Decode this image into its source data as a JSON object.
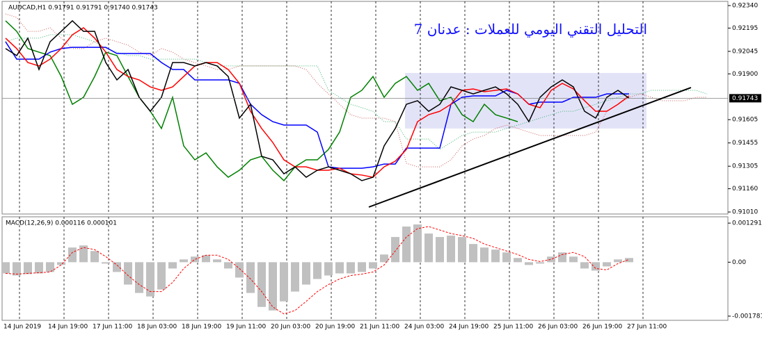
{
  "chart_data": [
    {
      "type": "line",
      "header": "AUDCAD,H1  0.91791 0.91791 0.91740 0.91743",
      "title": "التحليل التقني اليومي للعملات : عدنان 7",
      "categories": [
        "14 Jun 2019",
        null,
        null,
        null,
        "14 Jun 19:00",
        null,
        null,
        null,
        "17 Jun 11:00",
        null,
        null,
        null,
        "18 Jun 03:00",
        null,
        null,
        null,
        "18 Jun 19:00",
        null,
        null,
        null,
        "19 Jun 11:00",
        null,
        null,
        null,
        "20 Jun 03:00",
        null,
        null,
        null,
        "20 Jun 19:00",
        null,
        null,
        null,
        "21 Jun 11:00",
        null,
        null,
        null,
        "24 Jun 03:00",
        null,
        null,
        null,
        "24 Jun 19:00",
        null,
        null,
        null,
        "25 Jun 11:00",
        null,
        null,
        null,
        "26 Jun 03:00",
        null,
        null,
        null,
        "26 Jun 19:00",
        null,
        null,
        null,
        "27 Jun 11:00",
        null,
        null,
        null,
        null,
        null,
        null,
        null
      ],
      "series": [
        {
          "color": "#cd5c5c",
          "dash": "dotted",
          "values": [
            0.92286,
            0.92264,
            0.92174,
            0.92174,
            0.92197,
            0.9213,
            0.92063,
            0.92063,
            0.92107,
            0.9213,
            0.92107,
            0.92085,
            0.9204,
            0.92018,
            0.92063,
            0.9204,
            0.91995,
            0.91973,
            0.91951,
            0.91928,
            0.91928,
            0.91951,
            0.91951,
            0.91951,
            0.91951,
            0.91951,
            0.91951,
            0.91928,
            0.91839,
            0.91771,
            0.91704,
            0.91637,
            0.91615,
            0.91615,
            0.91615,
            0.91592,
            0.91324,
            0.91301,
            0.91301,
            0.91301,
            0.91346,
            0.91436,
            0.9148,
            0.91503,
            0.91548,
            0.9157,
            0.91548,
            0.91525,
            0.91503,
            0.91503,
            0.91503,
            0.91503,
            0.91503,
            0.91525,
            0.91659,
            0.91704,
            0.91749,
            0.91771,
            0.91749,
            0.91727,
            0.91727,
            0.91727,
            0.91749,
            0.91749
          ]
        },
        {
          "color": "#3cb371",
          "dash": "dotted",
          "values": [
            0.92107,
            0.9213,
            0.9213,
            0.9213,
            0.92152,
            0.92152,
            0.92152,
            0.9213,
            0.92107,
            0.92063,
            0.9204,
            0.92018,
            0.92018,
            0.91995,
            0.91995,
            0.91995,
            0.91995,
            0.91995,
            0.91973,
            0.91951,
            0.91951,
            0.91951,
            0.91951,
            0.91951,
            0.91951,
            0.91951,
            0.91951,
            0.91951,
            0.91951,
            0.91794,
            0.91749,
            0.91704,
            0.91682,
            0.91659,
            0.91592,
            0.91592,
            0.9148,
            0.9148,
            0.9148,
            0.91413,
            0.91458,
            0.91503,
            0.91525,
            0.91525,
            0.91525,
            0.91548,
            0.9157,
            0.91592,
            0.91615,
            0.91637,
            0.91659,
            0.91659,
            0.91682,
            0.91704,
            0.91727,
            0.91749,
            0.91771,
            0.91771,
            0.91794,
            0.91794,
            0.91794,
            0.91794,
            0.91794,
            0.91771
          ]
        },
        {
          "color": "#008000",
          "values": [
            0.92242,
            0.92174,
            0.92063,
            0.9204,
            0.92018,
            0.91883,
            0.91704,
            0.91749,
            0.91883,
            0.9204,
            0.92018,
            0.91883,
            0.91749,
            0.91659,
            0.91548,
            0.91749,
            0.91436,
            0.91346,
            0.91391,
            0.91301,
            0.91234,
            0.91279,
            0.91346,
            0.91369,
            0.91279,
            0.91212,
            0.91301,
            0.91346,
            0.91346,
            0.91413,
            0.91525,
            0.91749,
            0.91794,
            0.91883,
            0.91749,
            0.91839,
            0.91883,
            0.91794,
            0.91839,
            0.91727,
            0.91749,
            0.91637,
            0.91592,
            0.91704,
            0.91637,
            0.91615,
            0.91592,
            null,
            null,
            null,
            null,
            null,
            null,
            null,
            null,
            null,
            null,
            null,
            null,
            null,
            null,
            null,
            null,
            null
          ]
        },
        {
          "color": "#0000ff",
          "values": [
            0.92107,
            0.91995,
            0.91995,
            0.91995,
            0.9204,
            0.92063,
            0.92071,
            0.92071,
            0.92071,
            0.92071,
            0.92031,
            0.92031,
            0.92031,
            0.92031,
            0.91973,
            0.91928,
            0.91928,
            0.91861,
            0.91861,
            0.91861,
            0.91861,
            0.91839,
            0.91704,
            0.91637,
            0.91592,
            0.9157,
            0.9157,
            0.9157,
            0.91525,
            0.91301,
            0.91292,
            0.91292,
            0.91292,
            0.91301,
            0.91319,
            0.91319,
            0.91422,
            0.91422,
            0.91422,
            0.91422,
            0.91704,
            0.91749,
            0.91758,
            0.91758,
            0.91758,
            0.91794,
            0.91771,
            0.91704,
            0.91718,
            0.91718,
            0.91718,
            0.91749,
            0.91749,
            0.91749,
            0.91771,
            0.91771,
            0.91771,
            null,
            null,
            null,
            null,
            null,
            null,
            null
          ]
        },
        {
          "color": "#ff0000",
          "values": [
            0.9213,
            0.92063,
            0.91973,
            0.91951,
            0.91995,
            0.92063,
            0.92152,
            0.92197,
            0.9213,
            0.9204,
            0.91928,
            0.91883,
            0.91861,
            0.91816,
            0.91794,
            0.91816,
            0.91883,
            0.91951,
            0.91973,
            0.91973,
            0.91928,
            0.91839,
            0.91659,
            0.91548,
            0.91458,
            0.91346,
            0.91301,
            0.91301,
            0.91279,
            0.91279,
            0.91292,
            0.91256,
            0.91248,
            0.91234,
            0.91301,
            0.91337,
            0.91413,
            0.91592,
            0.91637,
            0.91659,
            0.91704,
            0.91794,
            0.91803,
            0.91785,
            0.91794,
            0.91803,
            0.91771,
            0.91704,
            0.91682,
            0.91794,
            0.91839,
            0.91803,
            0.91727,
            0.91659,
            0.91659,
            0.91704,
            0.91758,
            null,
            null,
            null,
            null,
            null,
            null,
            null
          ]
        },
        {
          "color": "#000000",
          "values": [
            0.92063,
            0.92018,
            0.9213,
            0.91928,
            0.92107,
            0.92174,
            0.92242,
            0.92174,
            0.92174,
            0.91973,
            0.91861,
            0.91928,
            0.91749,
            0.91659,
            0.91749,
            0.91973,
            0.91973,
            0.91951,
            0.91973,
            0.91951,
            0.91883,
            0.91615,
            0.91704,
            0.91369,
            0.91346,
            0.91256,
            0.91301,
            0.91234,
            0.91279,
            0.91301,
            0.91279,
            0.91256,
            0.91212,
            0.91234,
            0.91436,
            0.91548,
            0.91704,
            0.91727,
            0.91659,
            0.91704,
            0.91816,
            0.91794,
            0.91771,
            0.91794,
            0.91816,
            0.91771,
            0.91704,
            0.91592,
            0.91749,
            0.91816,
            0.91861,
            0.91816,
            0.91659,
            0.91615,
            0.91749,
            0.91794,
            0.91743,
            null,
            null,
            null,
            null,
            null,
            null,
            null
          ]
        }
      ],
      "ylim": [
        0.90997,
        0.92367
      ],
      "yticks": [
        {
          "value": 0.9234,
          "label": "0.92340"
        },
        0.92195,
        0.92045,
        {
          "value": 0.919,
          "label": "0.91900"
        },
        0.91605,
        0.91455,
        0.91305,
        {
          "value": 0.9116,
          "label": "0.91160"
        },
        {
          "value": 0.9101,
          "label": "0.91010"
        }
      ],
      "last_price": 0.91743,
      "grid": true
    },
    {
      "type": "macd",
      "header": "MACD(12,26,9) 0.000116 0.000101",
      "series": [
        {
          "type": "bar",
          "color": "#c0c0c0",
          "values": [
            -0.00037,
            -0.000439,
            -0.000393,
            -0.00037,
            -0.000323,
            -9.2e-05,
            0.000485,
            0.000554,
            0.00037,
            -4.6e-05,
            -0.000323,
            -0.000739,
            -0.001016,
            -0.001132,
            -0.000901,
            -0.000208,
            9.2e-05,
            0.000185,
            0.000231,
            9.2e-05,
            -0.000208,
            -0.000508,
            -0.001016,
            -0.001478,
            -0.001594,
            -0.001294,
            -0.00097,
            -0.000739,
            -0.000554,
            -0.000439,
            -0.00037,
            -0.00037,
            -0.000323,
            -0.000208,
            0.000254,
            0.000832,
            0.001178,
            0.001247,
            0.000947,
            0.000832,
            0.000878,
            0.000832,
            0.000601,
            0.000485,
            0.000416,
            0.000323,
            0.000139,
            -9.2e-05,
            -4.6e-05,
            0.000185,
            0.000323,
            0.000185,
            -0.000208,
            -0.000277,
            -0.000139,
            9.2e-05,
            0.000139
          ]
        },
        {
          "type": "line",
          "color": "#ff0000",
          "dash": "dashed",
          "values": [
            -0.00037,
            -0.000393,
            -0.00037,
            -0.000347,
            -0.000323,
            -9.2e-05,
            0.000323,
            0.000485,
            0.000416,
            0.000185,
            -9.2e-05,
            -0.000439,
            -0.000739,
            -0.00097,
            -0.00097,
            -0.00067,
            -0.000208,
            9.2e-05,
            0.000231,
            0.000231,
            9.2e-05,
            -0.000208,
            -0.000554,
            -0.00097,
            -0.001478,
            -0.001709,
            -0.001594,
            -0.001294,
            -0.00097,
            -0.000739,
            -0.000554,
            -0.000439,
            -0.000393,
            -0.000323,
            -9.2e-05,
            0.00037,
            0.000832,
            0.001109,
            0.001178,
            0.001063,
            0.000947,
            0.000878,
            0.000786,
            0.000601,
            0.000485,
            0.00037,
            0.000254,
            9.2e-05,
            2.3e-05,
            9.2e-05,
            0.000254,
            0.000323,
            0.000185,
            -0.000208,
            -0.000254,
            -4.6e-05,
            9.2e-05
          ]
        }
      ],
      "ylim": [
        -0.00192,
        0.0015
      ],
      "yticks": [
        0.001291,
        {
          "value": 0,
          "label": "0.00"
        },
        -0.001781
      ]
    }
  ]
}
